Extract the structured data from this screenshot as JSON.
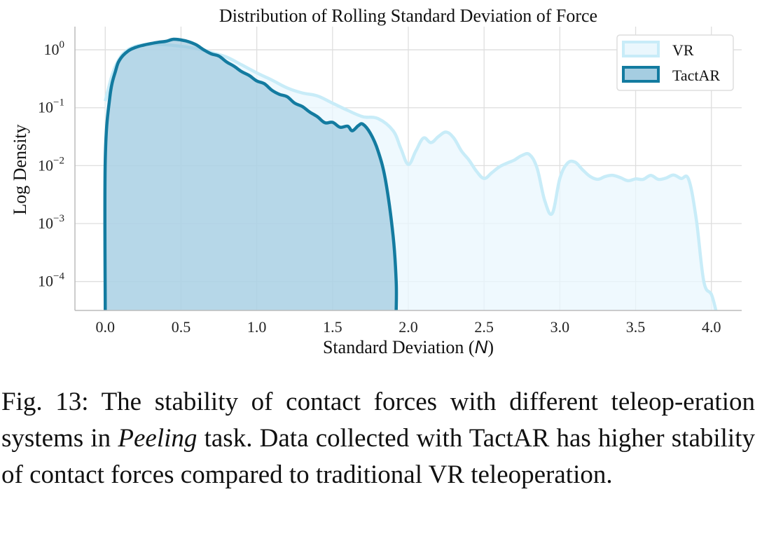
{
  "chart_data": {
    "type": "area",
    "title": "Distribution of Rolling Standard Deviation of Force",
    "xlabel_prefix": "Standard Deviation (",
    "xlabel_unit": "N",
    "xlabel_suffix": ")",
    "ylabel": "Log Density",
    "yscale": "log",
    "xlim": [
      -0.2,
      4.2
    ],
    "ylim_log10": [
      -4.5,
      0.4
    ],
    "x_ticks": [
      "0.0",
      "0.5",
      "1.0",
      "1.5",
      "2.0",
      "2.5",
      "3.0",
      "3.5",
      "4.0"
    ],
    "y_ticks": [
      {
        "base": "10",
        "exp": "0"
      },
      {
        "base": "10",
        "exp": "−1"
      },
      {
        "base": "10",
        "exp": "−2"
      },
      {
        "base": "10",
        "exp": "−3"
      },
      {
        "base": "10",
        "exp": "−4"
      }
    ],
    "grid": true,
    "legend_position": "top-right",
    "series": [
      {
        "name": "VR",
        "line_color": "#c8ecf8",
        "fill_color": "#e9f7fd",
        "fill_opacity": 0.75,
        "x": [
          0.0,
          0.05,
          0.1,
          0.15,
          0.2,
          0.25,
          0.3,
          0.4,
          0.5,
          0.6,
          0.7,
          0.8,
          0.9,
          1.0,
          1.1,
          1.2,
          1.3,
          1.4,
          1.5,
          1.6,
          1.7,
          1.8,
          1.9,
          1.95,
          2.0,
          2.05,
          2.1,
          2.15,
          2.2,
          2.25,
          2.3,
          2.35,
          2.4,
          2.45,
          2.5,
          2.55,
          2.6,
          2.65,
          2.7,
          2.75,
          2.8,
          2.85,
          2.9,
          2.95,
          3.0,
          3.05,
          3.1,
          3.15,
          3.2,
          3.25,
          3.3,
          3.35,
          3.4,
          3.45,
          3.5,
          3.55,
          3.6,
          3.65,
          3.7,
          3.75,
          3.8,
          3.85,
          3.9,
          3.95,
          4.0,
          4.03
        ],
        "y": [
          0.13,
          0.4,
          0.75,
          1.0,
          1.15,
          1.22,
          1.25,
          1.22,
          1.15,
          1.05,
          0.9,
          0.75,
          0.55,
          0.4,
          0.3,
          0.22,
          0.18,
          0.16,
          0.12,
          0.09,
          0.07,
          0.065,
          0.04,
          0.02,
          0.0105,
          0.018,
          0.03,
          0.025,
          0.032,
          0.038,
          0.03,
          0.018,
          0.0125,
          0.008,
          0.006,
          0.0075,
          0.0095,
          0.011,
          0.0125,
          0.015,
          0.0155,
          0.009,
          0.0025,
          0.0015,
          0.006,
          0.011,
          0.0115,
          0.0085,
          0.0065,
          0.0058,
          0.0065,
          0.0068,
          0.0062,
          0.0055,
          0.0059,
          0.0058,
          0.0068,
          0.0058,
          0.0061,
          0.0069,
          0.006,
          0.0058,
          0.0012,
          0.0001,
          6e-05,
          3e-05
        ]
      },
      {
        "name": "TactAR",
        "line_color": "#137ba0",
        "fill_color": "#8fc0d9",
        "fill_opacity": 0.6,
        "x": [
          0.0,
          0.0,
          0.03,
          0.07,
          0.1,
          0.15,
          0.2,
          0.25,
          0.3,
          0.35,
          0.4,
          0.45,
          0.5,
          0.55,
          0.6,
          0.65,
          0.7,
          0.75,
          0.8,
          0.85,
          0.9,
          0.95,
          1.0,
          1.05,
          1.1,
          1.15,
          1.2,
          1.25,
          1.3,
          1.35,
          1.4,
          1.45,
          1.5,
          1.55,
          1.6,
          1.63,
          1.67,
          1.7,
          1.75,
          1.8,
          1.85,
          1.9,
          1.92,
          1.92
        ],
        "y": [
          3e-05,
          0.012,
          0.15,
          0.45,
          0.7,
          0.95,
          1.1,
          1.2,
          1.28,
          1.35,
          1.4,
          1.52,
          1.48,
          1.38,
          1.22,
          1.0,
          0.85,
          0.78,
          0.62,
          0.52,
          0.42,
          0.36,
          0.29,
          0.26,
          0.2,
          0.17,
          0.155,
          0.12,
          0.105,
          0.084,
          0.07,
          0.055,
          0.056,
          0.046,
          0.048,
          0.04,
          0.049,
          0.052,
          0.036,
          0.018,
          0.0055,
          0.0006,
          0.0001,
          3e-05
        ]
      }
    ]
  },
  "caption": {
    "label": "Fig. 13:",
    "text_before": " The stability of contact forces with different teleop-eration systems in ",
    "task_name": "Peeling",
    "text_after": " task. Data collected with TactAR has higher stability of contact forces compared to traditional VR teleoperation."
  }
}
